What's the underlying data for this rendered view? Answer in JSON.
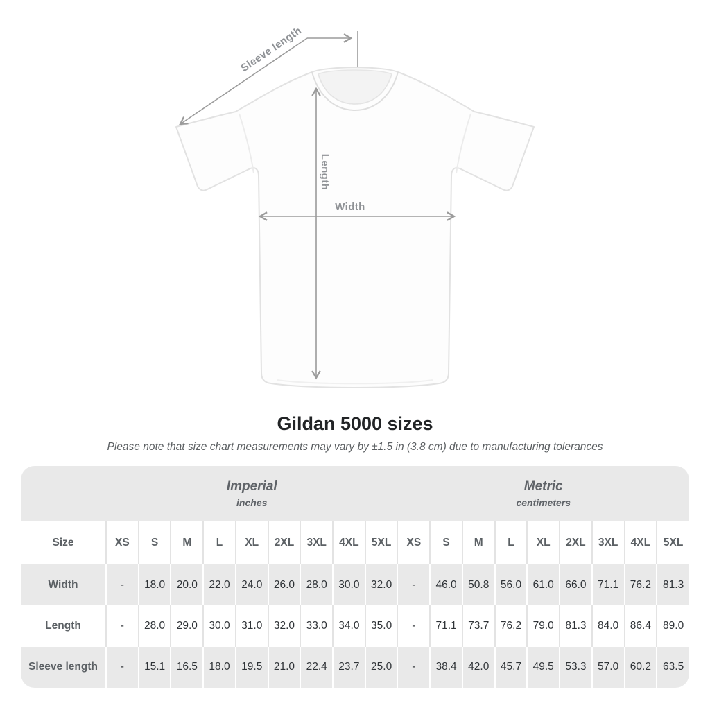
{
  "title": "Gildan 5000 sizes",
  "subtitle": "Please note that size chart measurements may vary by ±1.5 in (3.8 cm) due to manufacturing tolerances",
  "diagram": {
    "labels": {
      "sleeve_length": "Sleeve length",
      "length": "Length",
      "width": "Width"
    }
  },
  "table": {
    "size_column_header": "Size",
    "sections": [
      {
        "label": "Imperial",
        "sublabel": "inches"
      },
      {
        "label": "Metric",
        "sublabel": "centimeters"
      }
    ],
    "size_headers_imperial": [
      "XS",
      "S",
      "M",
      "L",
      "XL",
      "2XL",
      "3XL",
      "4XL",
      "5XL"
    ],
    "size_headers_metric": [
      "XS",
      "S",
      "M",
      "L",
      "XL",
      "2XL",
      "3XL",
      "4XL",
      "5XL"
    ],
    "rows": [
      {
        "label": "Width",
        "imperial": [
          "-",
          "18.0",
          "20.0",
          "22.0",
          "24.0",
          "26.0",
          "28.0",
          "30.0",
          "32.0"
        ],
        "metric": [
          "-",
          "46.0",
          "50.8",
          "56.0",
          "61.0",
          "66.0",
          "71.1",
          "76.2",
          "81.3"
        ]
      },
      {
        "label": "Length",
        "imperial": [
          "-",
          "28.0",
          "29.0",
          "30.0",
          "31.0",
          "32.0",
          "33.0",
          "34.0",
          "35.0"
        ],
        "metric": [
          "-",
          "71.1",
          "73.7",
          "76.2",
          "79.0",
          "81.3",
          "84.0",
          "86.4",
          "89.0"
        ]
      },
      {
        "label": "Sleeve length",
        "imperial": [
          "-",
          "15.1",
          "16.5",
          "18.0",
          "19.5",
          "21.0",
          "22.4",
          "23.7",
          "25.0"
        ],
        "metric": [
          "-",
          "38.4",
          "42.0",
          "45.7",
          "49.5",
          "53.3",
          "57.0",
          "60.2",
          "63.5"
        ]
      }
    ]
  },
  "colors": {
    "background": "#ffffff",
    "table_band": "#e9e9e9",
    "row_stripe": "#e9e9e9",
    "separator_on_white": "#e3e3e3",
    "separator_on_gray": "#ffffff",
    "annotation_line": "#9b9b9b",
    "annotation_text": "#8f9296",
    "title_text": "#222426",
    "subtitle_text": "#5c6063",
    "header_text": "#5b6064",
    "cell_text": "#2f3337"
  },
  "chart_data": {
    "type": "table",
    "title": "Gildan 5000 sizes",
    "note": "Please note that size chart measurements may vary by ±1.5 in (3.8 cm) due to manufacturing tolerances",
    "sections": [
      "Imperial (inches)",
      "Metric (centimeters)"
    ],
    "columns": [
      "Size",
      "XS",
      "S",
      "M",
      "L",
      "XL",
      "2XL",
      "3XL",
      "4XL",
      "5XL",
      "XS",
      "S",
      "M",
      "L",
      "XL",
      "2XL",
      "3XL",
      "4XL",
      "5XL"
    ],
    "rows": [
      [
        "Width",
        "-",
        18.0,
        20.0,
        22.0,
        24.0,
        26.0,
        28.0,
        30.0,
        32.0,
        "-",
        46.0,
        50.8,
        56.0,
        61.0,
        66.0,
        71.1,
        76.2,
        81.3
      ],
      [
        "Length",
        "-",
        28.0,
        29.0,
        30.0,
        31.0,
        32.0,
        33.0,
        34.0,
        35.0,
        "-",
        71.1,
        73.7,
        76.2,
        79.0,
        81.3,
        84.0,
        86.4,
        89.0
      ],
      [
        "Sleeve length",
        "-",
        15.1,
        16.5,
        18.0,
        19.5,
        21.0,
        22.4,
        23.7,
        25.0,
        "-",
        38.4,
        42.0,
        45.7,
        49.5,
        53.3,
        57.0,
        60.2,
        63.5
      ]
    ]
  }
}
